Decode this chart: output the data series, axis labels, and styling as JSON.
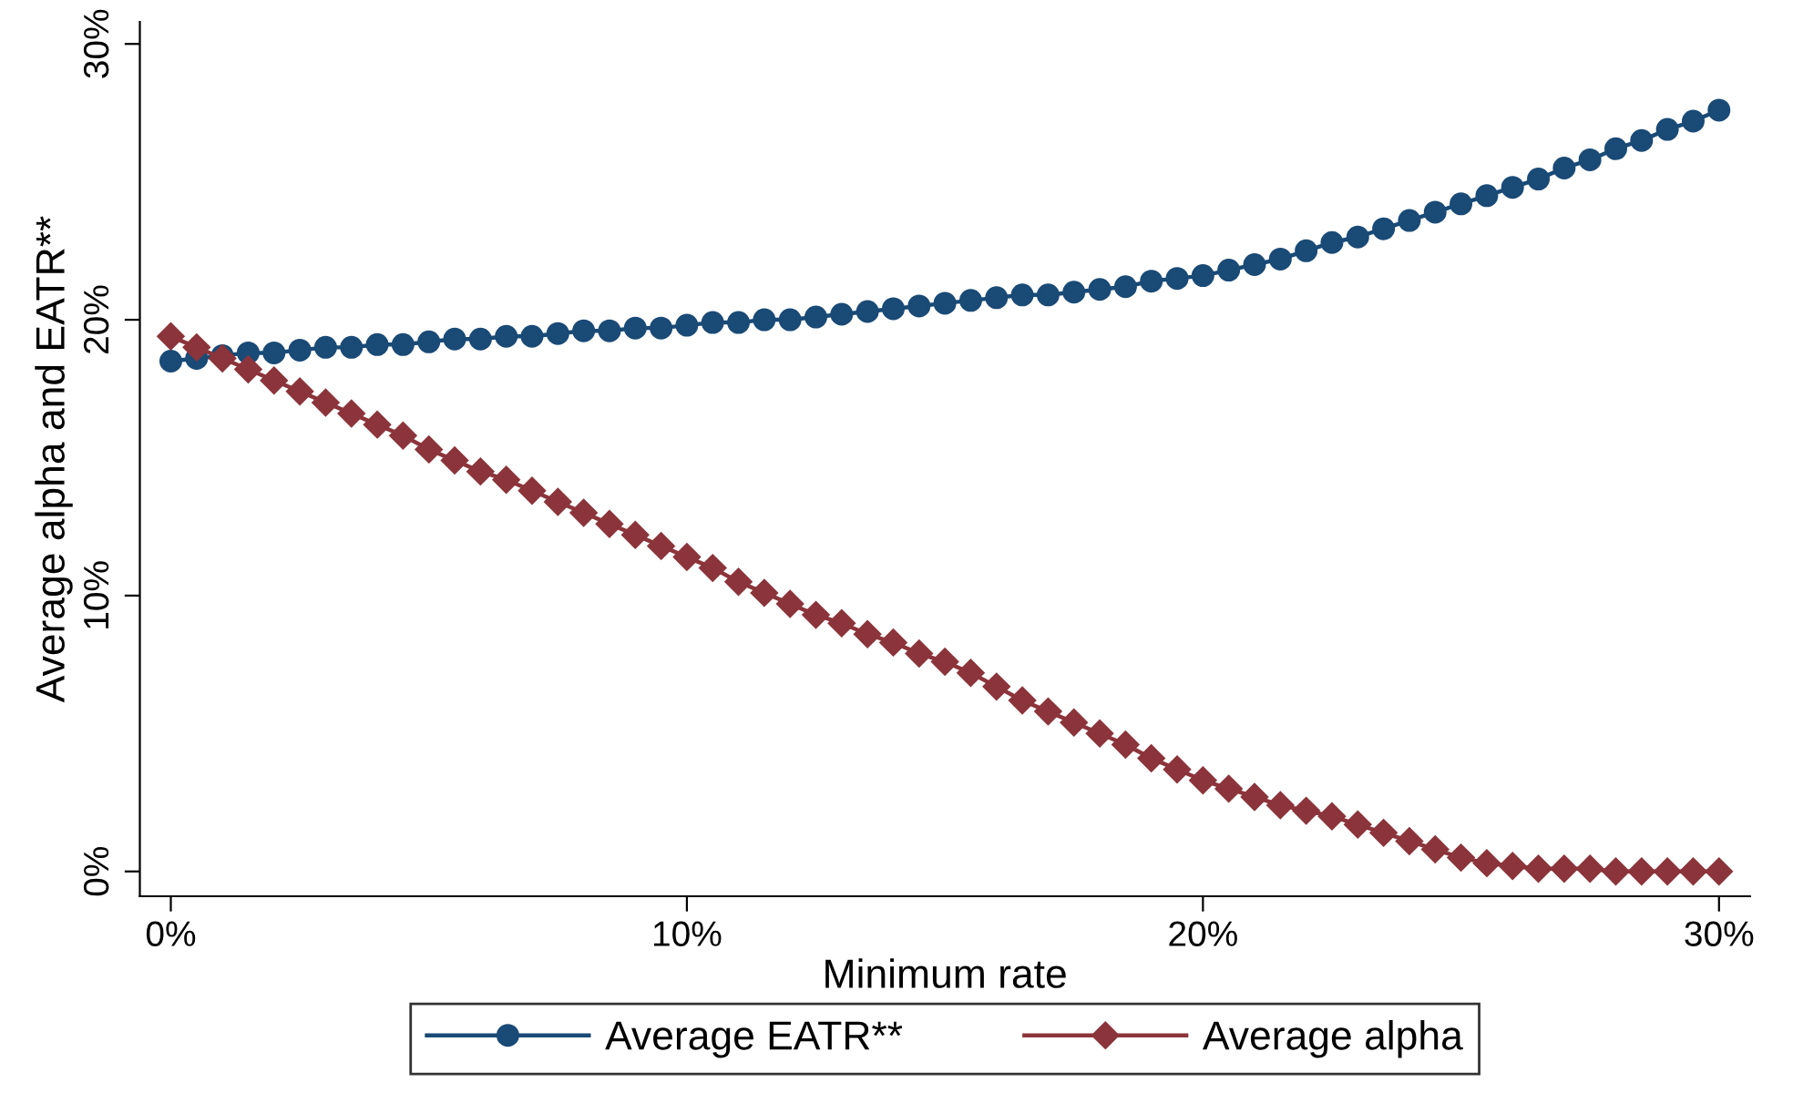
{
  "chart_data": {
    "type": "line",
    "xlabel": "Minimum rate",
    "ylabel": "Average alpha and EATR**",
    "x": [
      0,
      0.5,
      1,
      1.5,
      2,
      2.5,
      3,
      3.5,
      4,
      4.5,
      5,
      5.5,
      6,
      6.5,
      7,
      7.5,
      8,
      8.5,
      9,
      9.5,
      10,
      10.5,
      11,
      11.5,
      12,
      12.5,
      13,
      13.5,
      14,
      14.5,
      15,
      15.5,
      16,
      16.5,
      17,
      17.5,
      18,
      18.5,
      19,
      19.5,
      20,
      20.5,
      21,
      21.5,
      22,
      22.5,
      23,
      23.5,
      24,
      24.5,
      25,
      25.5,
      26,
      26.5,
      27,
      27.5,
      28,
      28.5,
      29,
      29.5,
      30
    ],
    "series": [
      {
        "name": "Average EATR**",
        "color": "#1a4a76",
        "marker": "circle",
        "values": [
          18.5,
          18.6,
          18.7,
          18.8,
          18.8,
          18.9,
          19.0,
          19.0,
          19.1,
          19.1,
          19.2,
          19.3,
          19.3,
          19.4,
          19.4,
          19.5,
          19.6,
          19.6,
          19.7,
          19.7,
          19.8,
          19.9,
          19.9,
          20.0,
          20.0,
          20.1,
          20.2,
          20.3,
          20.4,
          20.5,
          20.6,
          20.7,
          20.8,
          20.9,
          20.9,
          21.0,
          21.1,
          21.2,
          21.4,
          21.5,
          21.6,
          21.8,
          22.0,
          22.2,
          22.5,
          22.8,
          23.0,
          23.3,
          23.6,
          23.9,
          24.2,
          24.5,
          24.8,
          25.1,
          25.5,
          25.8,
          26.2,
          26.5,
          26.9,
          27.2,
          27.6
        ]
      },
      {
        "name": "Average alpha",
        "color": "#8c343b",
        "marker": "diamond",
        "values": [
          19.4,
          19.0,
          18.6,
          18.2,
          17.8,
          17.4,
          17.0,
          16.6,
          16.2,
          15.8,
          15.3,
          14.9,
          14.5,
          14.2,
          13.8,
          13.4,
          13.0,
          12.6,
          12.2,
          11.8,
          11.4,
          11.0,
          10.5,
          10.1,
          9.7,
          9.3,
          9.0,
          8.6,
          8.3,
          7.9,
          7.6,
          7.2,
          6.7,
          6.2,
          5.8,
          5.4,
          5.0,
          4.6,
          4.1,
          3.7,
          3.3,
          3.0,
          2.7,
          2.4,
          2.2,
          2.0,
          1.7,
          1.4,
          1.1,
          0.8,
          0.5,
          0.3,
          0.2,
          0.1,
          0.1,
          0.1,
          0,
          0,
          0,
          0,
          0
        ]
      }
    ],
    "xlim": [
      -0.6,
      30.6
    ],
    "ylim": [
      -0.9,
      30.8
    ],
    "xticks": [
      {
        "value": 0,
        "label": "0%"
      },
      {
        "value": 10,
        "label": "10%"
      },
      {
        "value": 20,
        "label": "20%"
      },
      {
        "value": 30,
        "label": "30%"
      }
    ],
    "yticks": [
      {
        "value": 0,
        "label": "0%"
      },
      {
        "value": 10,
        "label": "10%"
      },
      {
        "value": 20,
        "label": "20%"
      },
      {
        "value": 30,
        "label": "30%"
      }
    ],
    "grid": false,
    "legend": "bottom",
    "line_style": "solid"
  }
}
